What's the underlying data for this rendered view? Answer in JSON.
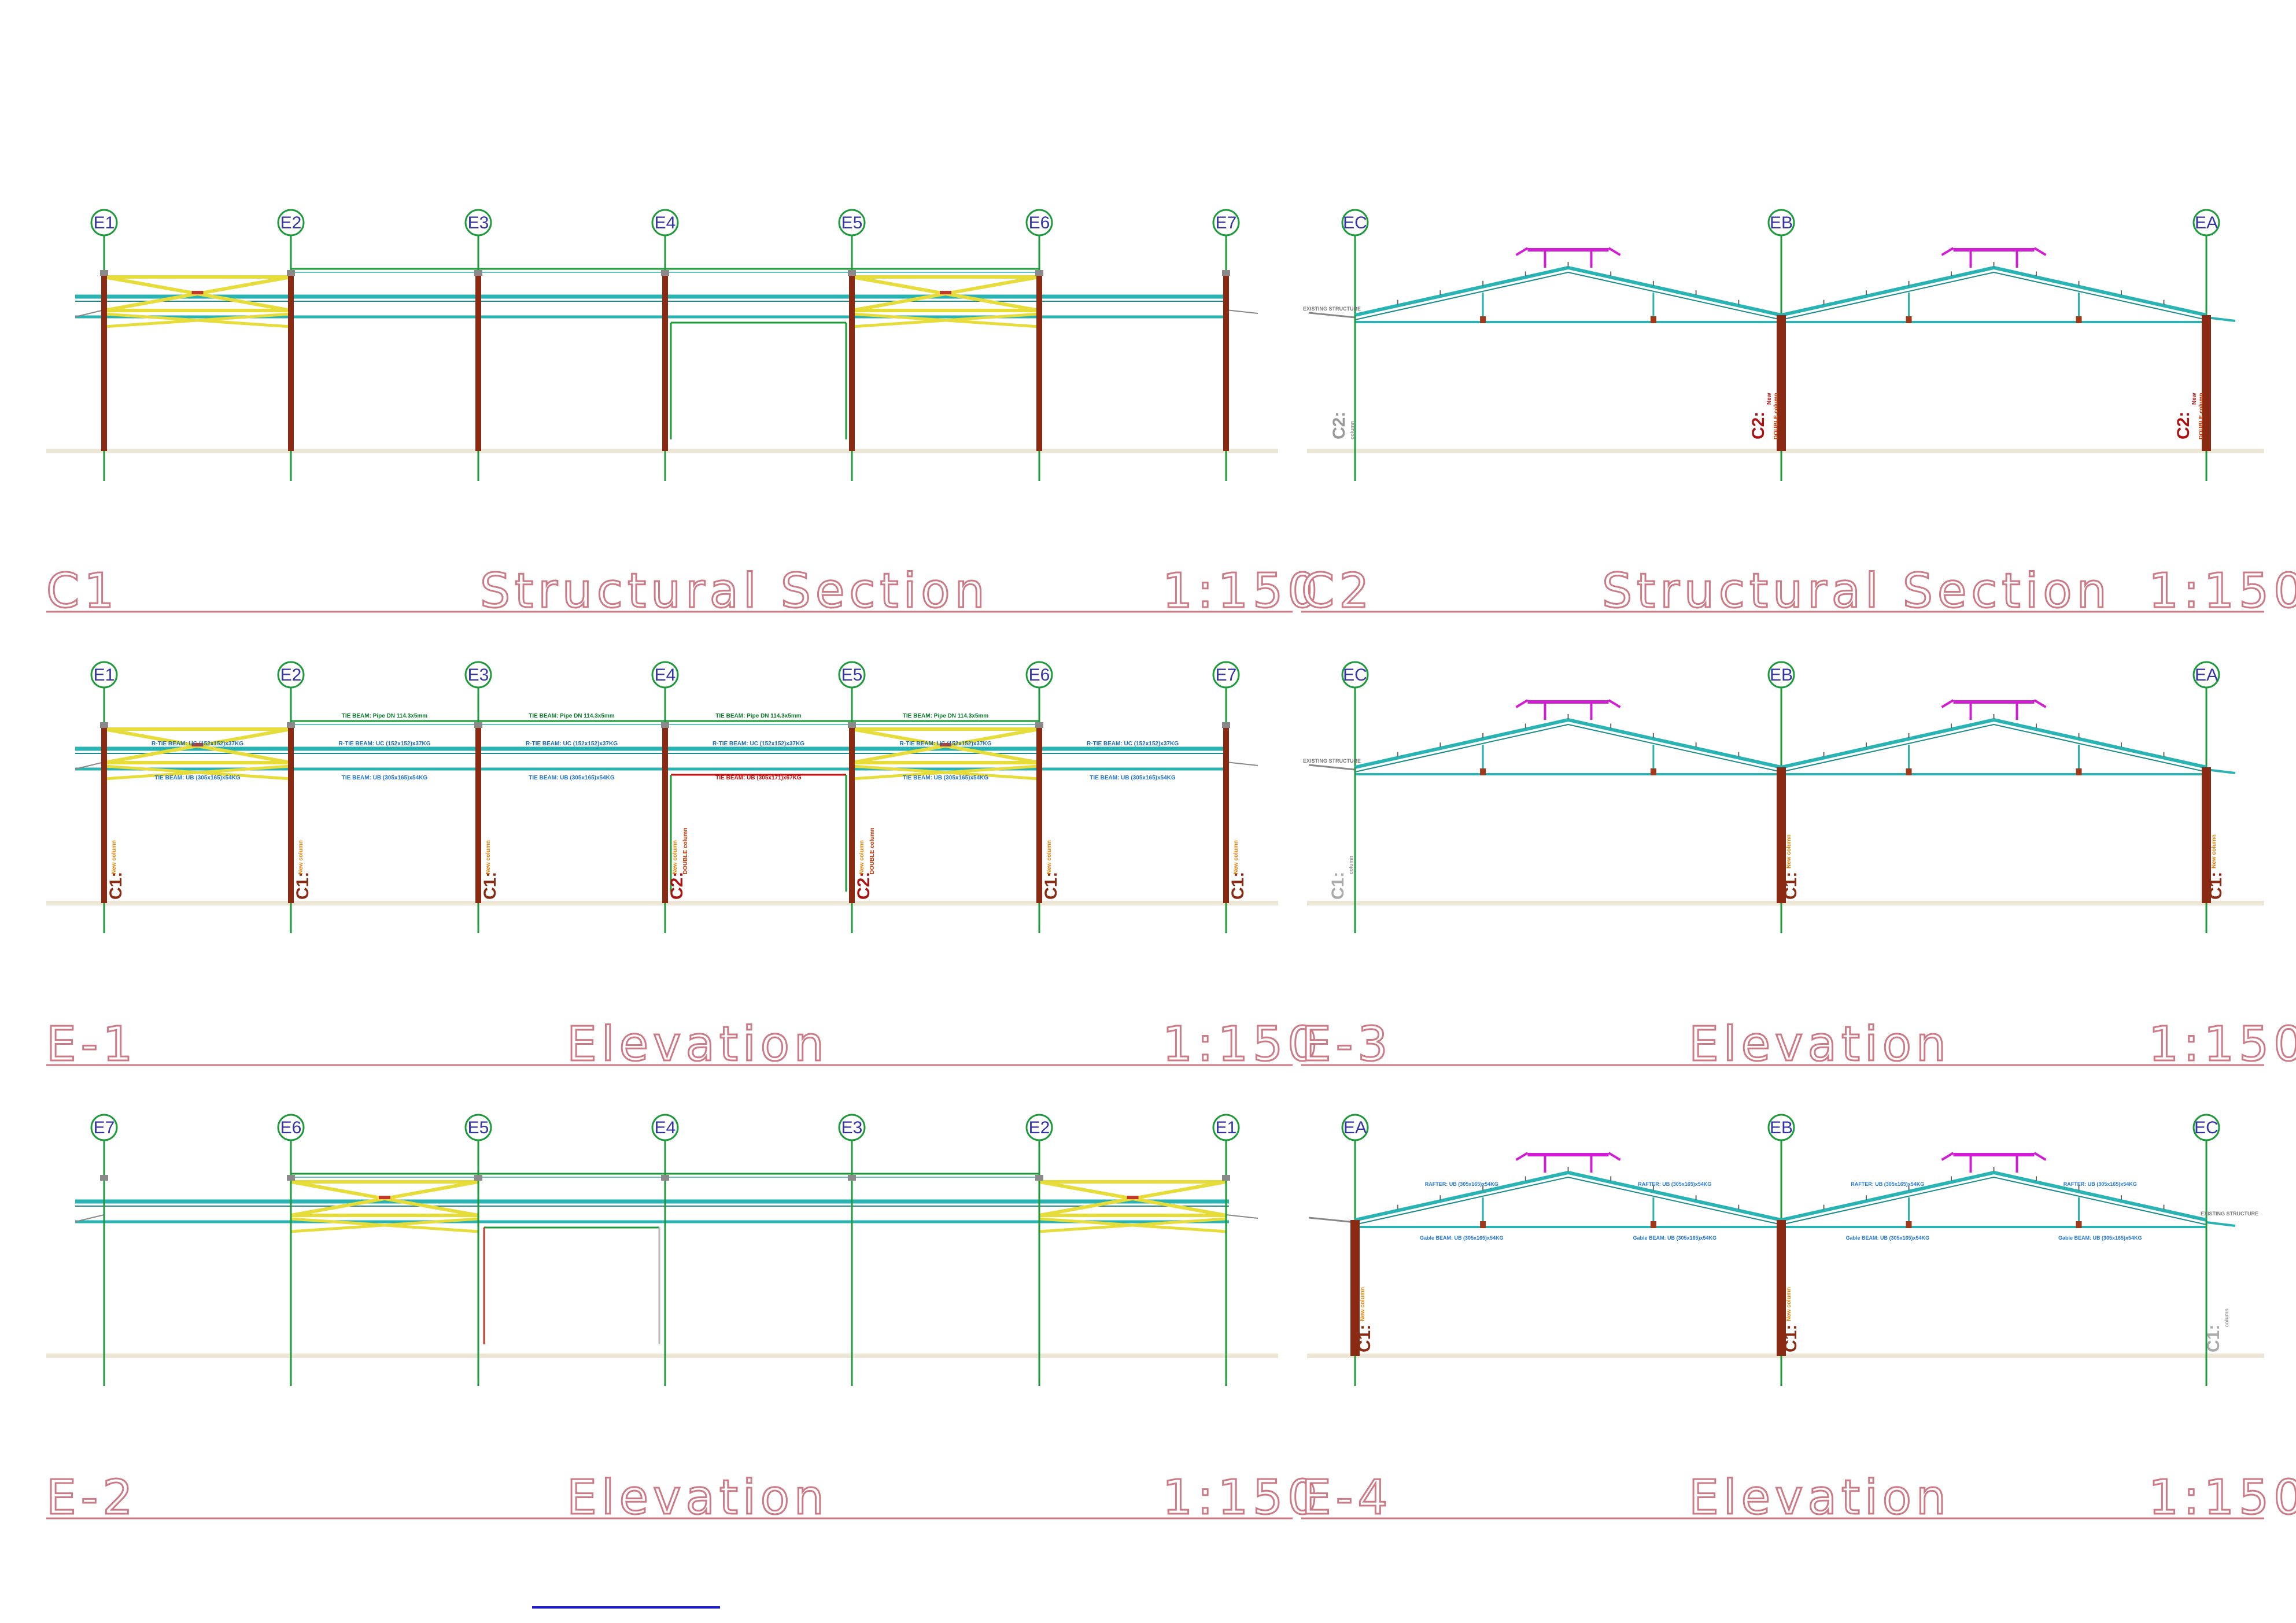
{
  "colors": {
    "grid": "#1d9a3a",
    "column": "#8b2a12",
    "beam": "#2ab3b3",
    "brace": "#e6dc3a",
    "ridge": "#d21ed2",
    "ground": "#ece6d6",
    "title": "#cc7a86",
    "newTie": "#cc1111",
    "label": "#e67e00",
    "blueLabel": "#2277dd"
  },
  "panels": [
    {
      "key": "c1",
      "id": "C1",
      "name": "Structural Section",
      "scale": "1:150",
      "kind": "long",
      "grids": [
        "E1",
        "E2",
        "E3",
        "E4",
        "E5",
        "E6",
        "E7"
      ],
      "braced": [
        0,
        4
      ],
      "labels": "none"
    },
    {
      "key": "c2",
      "id": "C2",
      "name": "Structural Section",
      "scale": "1:150",
      "kind": "cross",
      "grids": [
        "EC",
        "EB",
        "EA"
      ],
      "labels": "c2"
    },
    {
      "key": "e1",
      "id": "E-1",
      "name": "Elevation",
      "scale": "1:150",
      "kind": "long",
      "grids": [
        "E1",
        "E2",
        "E3",
        "E4",
        "E5",
        "E6",
        "E7"
      ],
      "braced": [
        0,
        4
      ],
      "labels": "e1"
    },
    {
      "key": "e3",
      "id": "E-3",
      "name": "Elevation",
      "scale": "1:150",
      "kind": "cross",
      "grids": [
        "EC",
        "EB",
        "EA"
      ],
      "labels": "e3"
    },
    {
      "key": "e2",
      "id": "E-2",
      "name": "Elevation",
      "scale": "1:150",
      "kind": "long",
      "grids": [
        "E7",
        "E6",
        "E5",
        "E4",
        "E3",
        "E2",
        "E1"
      ],
      "braced": [
        1,
        5
      ],
      "labels": "none"
    },
    {
      "key": "e4",
      "id": "E-4",
      "name": "Elevation",
      "scale": "1:150",
      "kind": "cross",
      "grids": [
        "EA",
        "EB",
        "EC"
      ],
      "labels": "e4"
    }
  ],
  "annotations": {
    "tieBeamPipe": "TIE BEAM:  Pipe DN 114.3x5mm",
    "rTieBeamUc": "R-TIE BEAM:  UC (152x152)x37KG",
    "tieBeamUb": "TIE BEAM:  UB (305x165)x54KG",
    "tieBeamNew": "TIE BEAM:  UB (305x171)x67KG",
    "c1": "C1:",
    "c2": "C2:",
    "newLabel": "New",
    "newColumn": "New column",
    "doubleColumn": "DOUBLE column",
    "existingStructure": "EXISTING STRUCTURE",
    "column": "column",
    "rafter": "RAFTER:  UB (305x165)x54KG",
    "gableBeam": "Gable BEAM:  UB (305x165)x54KG"
  }
}
